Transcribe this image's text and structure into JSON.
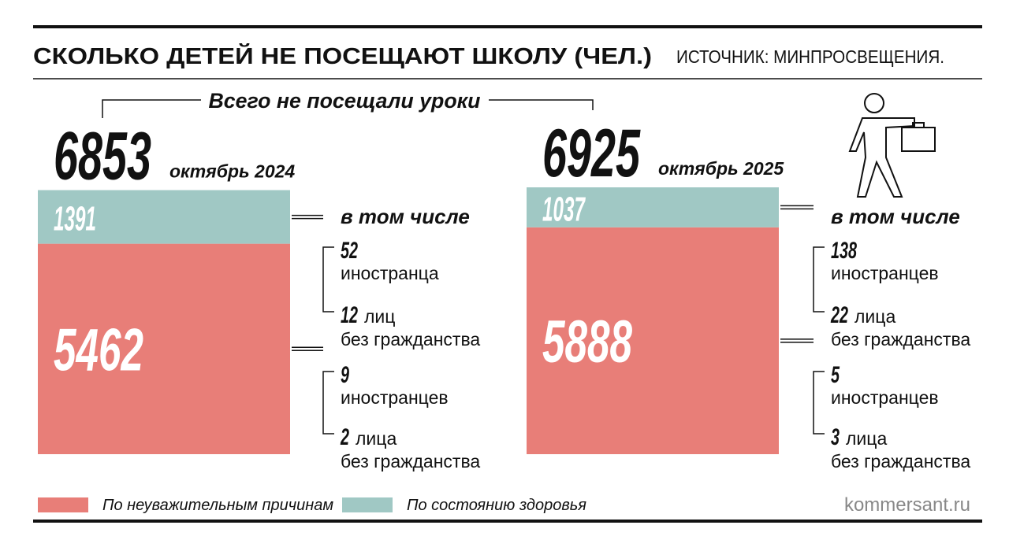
{
  "chart_data": {
    "type": "stacked_bar",
    "title": "СКОЛЬКО ДЕТЕЙ НЕ ПОСЕЩАЮТ ШКОЛУ (ЧЕЛ.)",
    "source": "ИСТОЧНИК: МИНПРОСВЕЩЕНИЯ.",
    "total_label": "Всего не посещали уроки",
    "categories": [
      "октябрь 2024",
      "октябрь 2025"
    ],
    "totals": [
      6853,
      6925
    ],
    "series": [
      {
        "name": "По неуважительным причинам",
        "color": "#e87e78",
        "values": [
          5462,
          5888
        ]
      },
      {
        "name": "По состоянию здоровья",
        "color": "#a0c8c4",
        "values": [
          1391,
          1037
        ]
      }
    ],
    "breakdown_title": "в том числе",
    "breakdowns": [
      [
        [
          {
            "value": 52,
            "label": "иностранца"
          },
          {
            "value": 12,
            "label": "лиц",
            "label2": "без гражданства"
          }
        ],
        [
          {
            "value": 9,
            "label": "иностранцев"
          },
          {
            "value": 2,
            "label": "лица",
            "label2": "без гражданства"
          }
        ]
      ],
      [
        [
          {
            "value": 138,
            "label": "иностранцев"
          },
          {
            "value": 22,
            "label": "лица",
            "label2": "без гражданства"
          }
        ],
        [
          {
            "value": 5,
            "label": "иностранцев"
          },
          {
            "value": 3,
            "label": "лица",
            "label2": "без гражданства"
          }
        ]
      ]
    ],
    "credit": "kommersant.ru"
  }
}
